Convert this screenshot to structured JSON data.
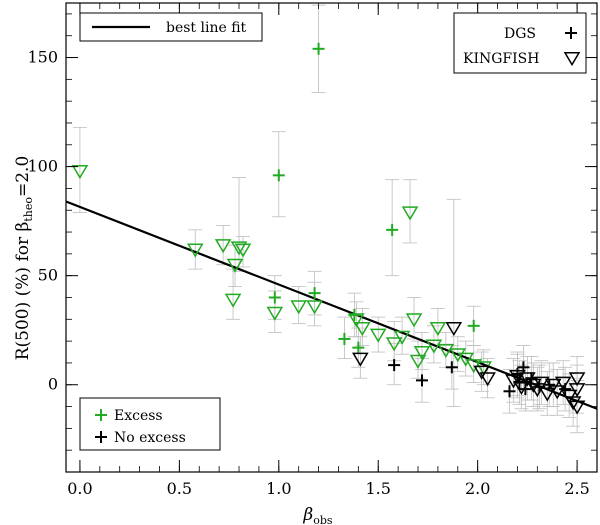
{
  "chart_data": {
    "type": "scatter",
    "title": "",
    "xlabel_main": "β",
    "xlabel_sub": "obs",
    "ylabel_prefix": "R(500) (%) for β",
    "ylabel_sub": "theo",
    "ylabel_suffix": "=2.0",
    "xlim": [
      -0.07,
      2.6
    ],
    "ylim": [
      -40,
      175
    ],
    "xticks": [
      0.0,
      0.5,
      1.0,
      1.5,
      2.0,
      2.5
    ],
    "xtick_labels": [
      "0.0",
      "0.5",
      "1.0",
      "1.5",
      "2.0",
      "2.5"
    ],
    "yticks": [
      0,
      50,
      100,
      150
    ],
    "ytick_labels": [
      "0",
      "50",
      "100",
      "150"
    ],
    "fit_line": {
      "name": "best line fit",
      "x": [
        -0.07,
        2.6
      ],
      "y": [
        84,
        -11
      ]
    },
    "legend_fit": "best line fit",
    "legend_samples": [
      {
        "label": "DGS",
        "marker": "plus"
      },
      {
        "label": "KINGFISH",
        "marker": "triangle"
      }
    ],
    "legend_colors": [
      {
        "label": "Excess",
        "color": "#22aa22"
      },
      {
        "label": "No excess",
        "color": "#000000"
      }
    ],
    "series": [
      {
        "name": "KINGFISH Excess",
        "marker": "triangle",
        "color": "#22aa22",
        "points": [
          {
            "x": 0.0,
            "y": 98,
            "lo": 79,
            "hi": 118
          },
          {
            "x": 0.58,
            "y": 62,
            "lo": 53,
            "hi": 71
          },
          {
            "x": 0.72,
            "y": 64,
            "lo": 55,
            "hi": 73
          },
          {
            "x": 0.78,
            "y": 55,
            "lo": 45,
            "hi": 64
          },
          {
            "x": 0.8,
            "y": 63,
            "lo": 52,
            "hi": 95
          },
          {
            "x": 0.82,
            "y": 62,
            "lo": 54,
            "hi": 68
          },
          {
            "x": 0.77,
            "y": 39,
            "lo": 30,
            "hi": 53
          },
          {
            "x": 0.98,
            "y": 33,
            "lo": 24,
            "hi": 43
          },
          {
            "x": 1.1,
            "y": 36,
            "lo": 28,
            "hi": 45
          },
          {
            "x": 1.18,
            "y": 36,
            "lo": 27,
            "hi": 47
          },
          {
            "x": 1.39,
            "y": 30,
            "lo": 22,
            "hi": 38
          },
          {
            "x": 1.42,
            "y": 26,
            "lo": 18,
            "hi": 35
          },
          {
            "x": 1.5,
            "y": 23,
            "lo": 15,
            "hi": 31
          },
          {
            "x": 1.58,
            "y": 19,
            "lo": 11,
            "hi": 29
          },
          {
            "x": 1.62,
            "y": 22,
            "lo": 14,
            "hi": 31
          },
          {
            "x": 1.66,
            "y": 79,
            "lo": 65,
            "hi": 94
          },
          {
            "x": 1.68,
            "y": 30,
            "lo": 21,
            "hi": 40
          },
          {
            "x": 1.7,
            "y": 11,
            "lo": 3,
            "hi": 20
          },
          {
            "x": 1.72,
            "y": 15,
            "lo": 7,
            "hi": 24
          },
          {
            "x": 1.78,
            "y": 18,
            "lo": 10,
            "hi": 27
          },
          {
            "x": 1.8,
            "y": 26,
            "lo": 18,
            "hi": 35
          },
          {
            "x": 1.84,
            "y": 16,
            "lo": 8,
            "hi": 24
          },
          {
            "x": 1.9,
            "y": 14,
            "lo": 6,
            "hi": 22
          },
          {
            "x": 1.94,
            "y": 12,
            "lo": 4,
            "hi": 20
          },
          {
            "x": 1.98,
            "y": 9,
            "lo": 1,
            "hi": 18
          },
          {
            "x": 2.03,
            "y": 8,
            "lo": 0,
            "hi": 16
          }
        ]
      },
      {
        "name": "DGS Excess",
        "marker": "plus",
        "color": "#22aa22",
        "points": [
          {
            "x": 0.98,
            "y": 40,
            "lo": 30,
            "hi": 50
          },
          {
            "x": 1.0,
            "y": 96,
            "lo": 77,
            "hi": 116
          },
          {
            "x": 1.18,
            "y": 42,
            "lo": 32,
            "hi": 52
          },
          {
            "x": 1.2,
            "y": 154,
            "lo": 134,
            "hi": 174
          },
          {
            "x": 1.33,
            "y": 21,
            "lo": 12,
            "hi": 31
          },
          {
            "x": 1.38,
            "y": 32,
            "lo": 22,
            "hi": 42
          },
          {
            "x": 1.4,
            "y": 17,
            "lo": 8,
            "hi": 26
          },
          {
            "x": 1.57,
            "y": 71,
            "lo": 50,
            "hi": 94
          },
          {
            "x": 1.98,
            "y": 27,
            "lo": 18,
            "hi": 36
          }
        ]
      },
      {
        "name": "KINGFISH No excess",
        "marker": "triangle",
        "color": "#000000",
        "points": [
          {
            "x": 1.41,
            "y": 12,
            "lo": 3,
            "hi": 22
          },
          {
            "x": 1.88,
            "y": 26,
            "lo": -10,
            "hi": 85
          },
          {
            "x": 2.02,
            "y": 6,
            "lo": -3,
            "hi": 15
          },
          {
            "x": 2.05,
            "y": 3,
            "lo": -6,
            "hi": 12
          },
          {
            "x": 2.18,
            "y": 2,
            "lo": -8,
            "hi": 12
          },
          {
            "x": 2.2,
            "y": 4,
            "lo": -6,
            "hi": 14
          },
          {
            "x": 2.22,
            "y": -1,
            "lo": -11,
            "hi": 9
          },
          {
            "x": 2.25,
            "y": 3,
            "lo": -7,
            "hi": 13
          },
          {
            "x": 2.28,
            "y": 0,
            "lo": -10,
            "hi": 10
          },
          {
            "x": 2.3,
            "y": -2,
            "lo": -12,
            "hi": 8
          },
          {
            "x": 2.32,
            "y": 1,
            "lo": -9,
            "hi": 11
          },
          {
            "x": 2.35,
            "y": -4,
            "lo": -14,
            "hi": 6
          },
          {
            "x": 2.38,
            "y": 0,
            "lo": -10,
            "hi": 10
          },
          {
            "x": 2.4,
            "y": -3,
            "lo": -14,
            "hi": 7
          },
          {
            "x": 2.43,
            "y": 1,
            "lo": -9,
            "hi": 11
          },
          {
            "x": 2.46,
            "y": -5,
            "lo": -15,
            "hi": 5
          },
          {
            "x": 2.48,
            "y": -8,
            "lo": -19,
            "hi": 3
          },
          {
            "x": 2.5,
            "y": 3,
            "lo": -8,
            "hi": 13
          },
          {
            "x": 2.5,
            "y": -2,
            "lo": -13,
            "hi": 9
          },
          {
            "x": 2.5,
            "y": -10,
            "lo": -22,
            "hi": 2
          }
        ]
      },
      {
        "name": "DGS No excess",
        "marker": "plus",
        "color": "#000000",
        "points": [
          {
            "x": 1.58,
            "y": 9,
            "lo": 0,
            "hi": 19
          },
          {
            "x": 1.72,
            "y": 2,
            "lo": -8,
            "hi": 12
          },
          {
            "x": 1.87,
            "y": 8,
            "lo": -2,
            "hi": 18
          },
          {
            "x": 2.16,
            "y": -3,
            "lo": -13,
            "hi": 7
          },
          {
            "x": 2.2,
            "y": 5,
            "lo": -5,
            "hi": 15
          },
          {
            "x": 2.21,
            "y": 1,
            "lo": -9,
            "hi": 11
          },
          {
            "x": 2.23,
            "y": 8,
            "lo": -2,
            "hi": 18
          },
          {
            "x": 2.24,
            "y": -2,
            "lo": -12,
            "hi": 8
          },
          {
            "x": 2.27,
            "y": 3,
            "lo": -7,
            "hi": 13
          },
          {
            "x": 2.31,
            "y": -1,
            "lo": -11,
            "hi": 9
          },
          {
            "x": 2.36,
            "y": 0,
            "lo": -10,
            "hi": 10
          },
          {
            "x": 2.44,
            "y": -2,
            "lo": -12,
            "hi": 8
          }
        ]
      }
    ]
  }
}
